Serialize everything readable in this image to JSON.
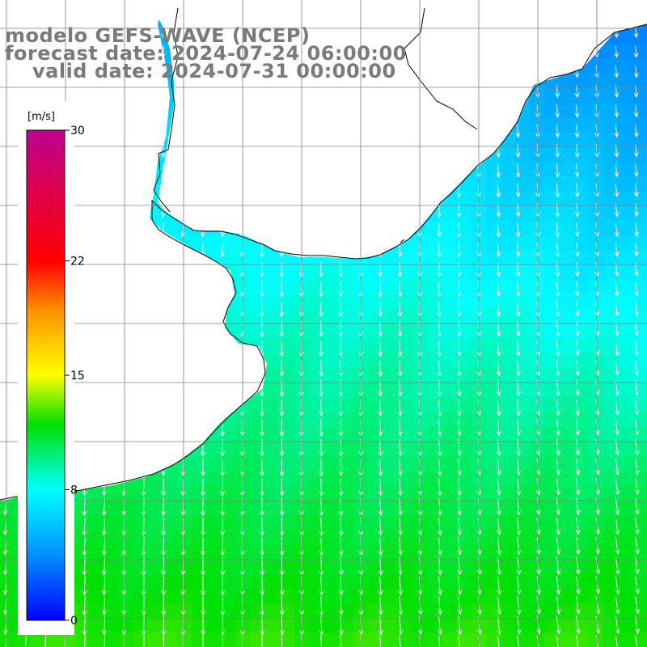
{
  "title": {
    "model": "modelo GEFS-WAVE (NCEP)",
    "forecast": "forecast date: 2024-07-24 06:00:00",
    "valid": "valid date: 2024-07-31 00:00:00"
  },
  "colorbar": {
    "unit": "[m/s]",
    "min": 0,
    "max": 30,
    "ticks": [
      {
        "value": 0,
        "label": "0"
      },
      {
        "value": 8,
        "label": "8"
      },
      {
        "value": 15,
        "label": "15"
      },
      {
        "value": 22,
        "label": "22"
      },
      {
        "value": 30,
        "label": "30"
      }
    ],
    "stops": [
      {
        "value": 0,
        "color": "#0000ff"
      },
      {
        "value": 4,
        "color": "#0090ff"
      },
      {
        "value": 8,
        "color": "#00ffff"
      },
      {
        "value": 12,
        "color": "#00e000"
      },
      {
        "value": 15,
        "color": "#ffff00"
      },
      {
        "value": 19,
        "color": "#ff9000"
      },
      {
        "value": 22,
        "color": "#ff0000"
      },
      {
        "value": 30,
        "color": "#c00090"
      }
    ]
  },
  "map": {
    "land_color": "#ffffff",
    "coast_color": "#000000",
    "grid_color": "#808080",
    "vector_color": "#ffffff"
  }
}
